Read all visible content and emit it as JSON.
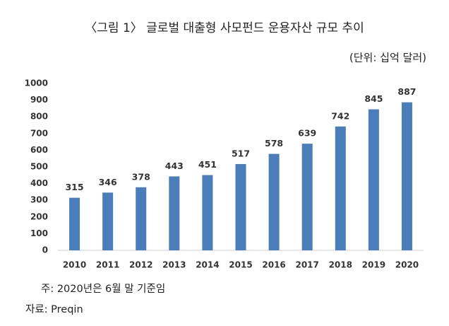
{
  "chart_data": {
    "type": "bar",
    "title": "〈그림 1〉 글로벌 대출형 사모펀드 운용자산 규모 추이",
    "subtitle": "(단위: 십억 달러)",
    "categories": [
      "2010",
      "2011",
      "2012",
      "2013",
      "2014",
      "2015",
      "2016",
      "2017",
      "2018",
      "2019",
      "2020"
    ],
    "values": [
      315,
      346,
      378,
      443,
      451,
      517,
      578,
      639,
      742,
      845,
      887
    ],
    "color": "#4a7ebb",
    "ylim": [
      0,
      1000
    ],
    "yticks": [
      0,
      100,
      200,
      300,
      400,
      500,
      600,
      700,
      800,
      900,
      1000
    ],
    "grid": false,
    "notes": [
      "주: 2020년은 6월 말 기준임",
      "자료: Preqin"
    ]
  }
}
